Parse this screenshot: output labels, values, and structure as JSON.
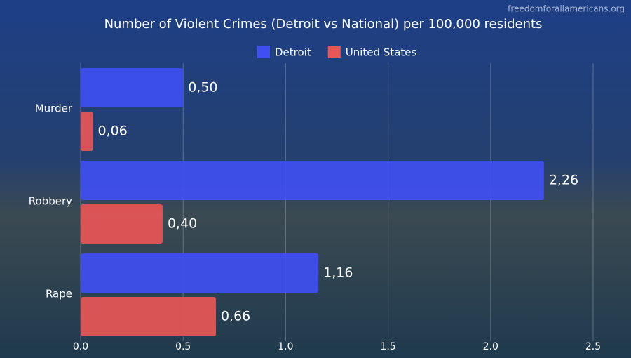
{
  "chart_data": {
    "type": "hbar",
    "title": "Number of Violent Crimes (Detroit vs National) per 100,000 residents",
    "source": "freedomforallamericans.org",
    "categories": [
      "Murder",
      "Robbery",
      "Rape"
    ],
    "series": [
      {
        "name": "Detroit",
        "color": "#3f4ff2",
        "values": [
          0.5,
          2.26,
          1.16
        ],
        "value_labels": [
          "0,50",
          "2,26",
          "1,16"
        ]
      },
      {
        "name": "United States",
        "color": "#e85656",
        "values": [
          0.06,
          0.4,
          0.66
        ],
        "value_labels": [
          "0,06",
          "0,40",
          "0,66"
        ]
      }
    ],
    "xlim": [
      0,
      2.5
    ],
    "xticks": [
      {
        "value": 0,
        "label": "0.0"
      },
      {
        "value": 0.5,
        "label": "0.5"
      },
      {
        "value": 1,
        "label": "1.0"
      },
      {
        "value": 1.5,
        "label": "1.5"
      },
      {
        "value": 2,
        "label": "2.0"
      },
      {
        "value": 2.5,
        "label": "2.5"
      }
    ],
    "grid": true,
    "legend": "top"
  }
}
